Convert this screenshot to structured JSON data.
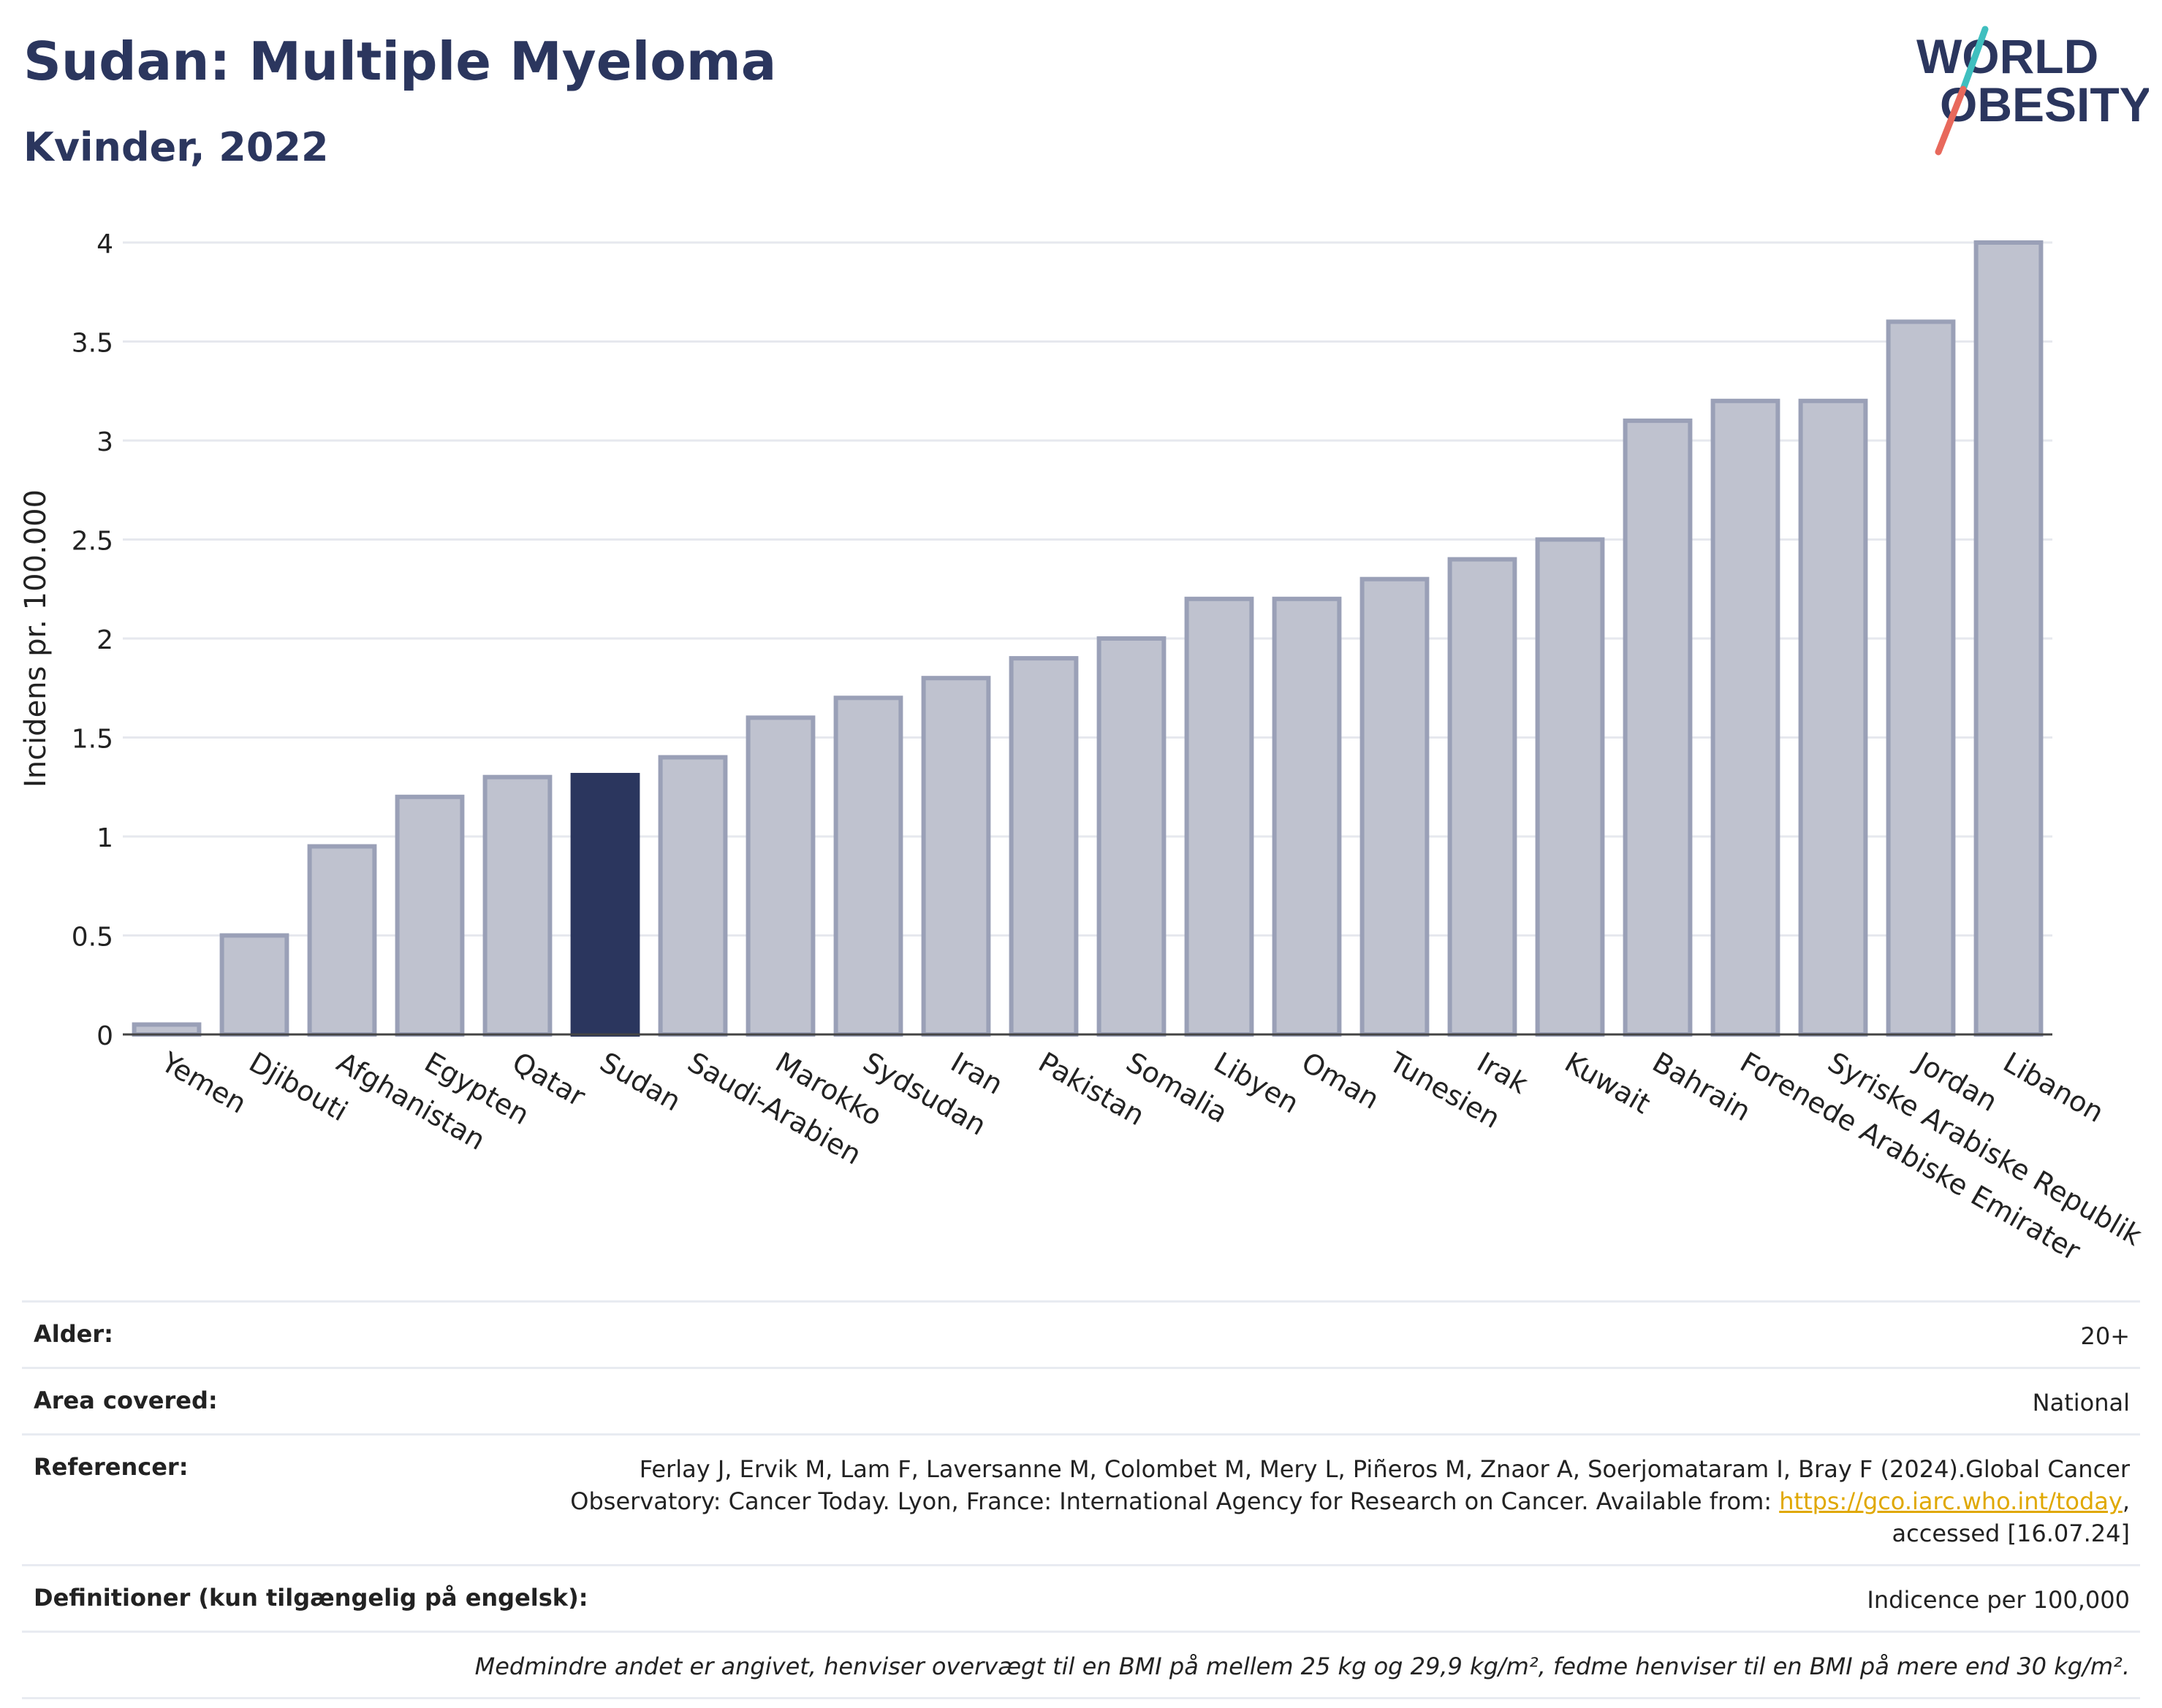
{
  "header": {
    "title": "Sudan: Multiple Myeloma",
    "subtitle": "Kvinder, 2022"
  },
  "logo": {
    "line1": "WORLD",
    "line2": "OBESITY"
  },
  "colors": {
    "highlight": "#2b365e",
    "bar_fill": "#bfc2cf",
    "bar_stroke": "#9aa0b7",
    "logo_slash_teal": "#3fbfbf",
    "logo_slash_red": "#e8695c",
    "link": "#e0a800"
  },
  "chart_data": {
    "type": "bar",
    "title": "Sudan: Multiple Myeloma",
    "subtitle": "Kvinder, 2022",
    "ylabel": "Incidens pr. 100.000",
    "xlabel": "",
    "ylim": [
      0,
      4
    ],
    "yticks": [
      "0",
      "0.5",
      "1",
      "1.5",
      "2",
      "2.5",
      "3",
      "3.5",
      "4"
    ],
    "ytick_values": [
      0,
      0.5,
      1,
      1.5,
      2,
      2.5,
      3,
      3.5,
      4
    ],
    "grid": true,
    "highlight": "Sudan",
    "categories": [
      "Yemen",
      "Djibouti",
      "Afghanistan",
      "Egypten",
      "Qatar",
      "Sudan",
      "Saudi-Arabien",
      "Marokko",
      "Sydsudan",
      "Iran",
      "Pakistan",
      "Somalia",
      "Libyen",
      "Oman",
      "Tunesien",
      "Irak",
      "Kuwait",
      "Bahrain",
      "Forenede Arabiske Emirater",
      "Syriske Arabiske Republik",
      "Jordan",
      "Libanon"
    ],
    "values": [
      0.05,
      0.5,
      0.95,
      1.2,
      1.3,
      1.31,
      1.4,
      1.6,
      1.7,
      1.8,
      1.9,
      2.0,
      2.2,
      2.2,
      2.3,
      2.4,
      2.5,
      3.1,
      3.2,
      3.2,
      3.6,
      4.0
    ]
  },
  "meta": {
    "age_label": "Alder:",
    "age_value": "20+",
    "area_label": "Area covered:",
    "area_value": "National",
    "ref_label": "Referencer:",
    "ref_text_1": "Ferlay J, Ervik M, Lam F, Laversanne M, Colombet M, Mery L, Piñeros M, Znaor A, Soerjomataram I, Bray F (2024).Global Cancer",
    "ref_text_2": "Observatory: Cancer Today. Lyon, France: International Agency for Research on Cancer. Available from: ",
    "ref_link": "https://gco.iarc.who.int/today",
    "ref_text_3": ",",
    "ref_text_4": "accessed [16.07.24]",
    "def_label": "Definitioner (kun tilgængelig på engelsk):",
    "def_value": "Indicence per 100,000",
    "footnote": "Medmindre andet er angivet, henviser overvægt til en BMI på mellem 25 kg og 29,9 kg/m², fedme henviser til en BMI på mere end 30 kg/m²."
  }
}
